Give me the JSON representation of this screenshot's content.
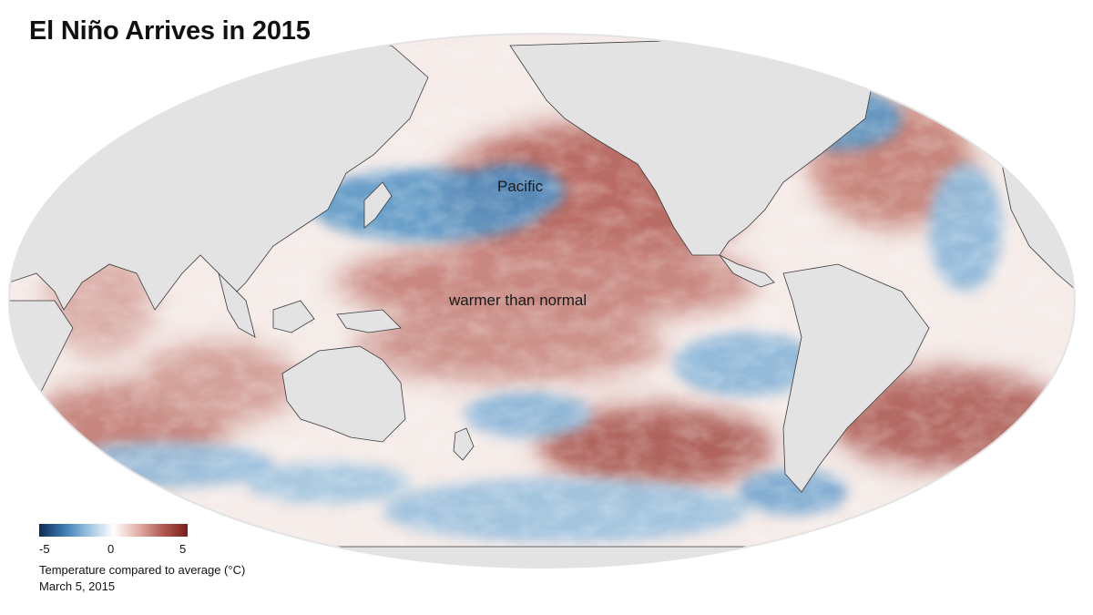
{
  "title": "El Niño Arrives in 2015",
  "labels": {
    "pacific": "Pacific",
    "warmer": "warmer than normal"
  },
  "legend": {
    "tick_min": "-5",
    "tick_mid": "0",
    "tick_max": "5",
    "caption": "Temperature compared to average (°C)",
    "date": "March 5, 2015",
    "colors": [
      "#0d2b52",
      "#3d7ab3",
      "#9cc4e0",
      "#ffffff",
      "#e3b1a8",
      "#b15a52",
      "#7a1f1c"
    ]
  },
  "colors": {
    "land": "#e3e3e3",
    "ocean_neutral": "#f6ecea",
    "warm": "#b5625b",
    "cool": "#5f9cc9",
    "coast": "#3a3a3a"
  }
}
